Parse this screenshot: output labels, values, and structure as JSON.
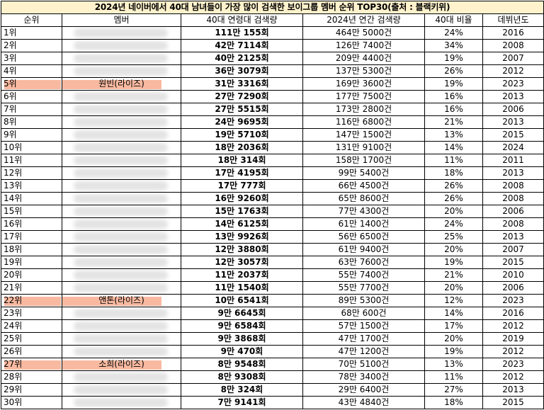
{
  "title": "2024년 네이버에서 40대 남녀들이 가장 많이 검색한 보이그룹 멤버 순위 TOP30(출처 : 블랙키위)",
  "headers": {
    "rank": "순위",
    "member": "멤버",
    "search40": "40대 연령대 검색량",
    "annual": "2024년 연간 검색량",
    "ratio": "40대 비율",
    "debut": "데뷔년도"
  },
  "highlight_color": "#f8b9a0",
  "title_background": "#fff2cc",
  "rows": [
    {
      "rank": "1위",
      "member": "",
      "search40": "111만 155회",
      "annual": "464만 5000건",
      "ratio": "24%",
      "debut": "2016",
      "highlight": false
    },
    {
      "rank": "2위",
      "member": "",
      "search40": "42만 7114회",
      "annual": "126만 7400건",
      "ratio": "34%",
      "debut": "2008",
      "highlight": false
    },
    {
      "rank": "3위",
      "member": "",
      "search40": "40만 2125회",
      "annual": "209만 4400건",
      "ratio": "19%",
      "debut": "2007",
      "highlight": false
    },
    {
      "rank": "4위",
      "member": "",
      "search40": "36만 3079회",
      "annual": "137만 5300건",
      "ratio": "26%",
      "debut": "2012",
      "highlight": false
    },
    {
      "rank": "5위",
      "member": "원빈(라이즈)",
      "search40": "31만 3316회",
      "annual": "169만 3600건",
      "ratio": "19%",
      "debut": "2023",
      "highlight": true
    },
    {
      "rank": "6위",
      "member": "",
      "search40": "27만 7290회",
      "annual": "177만 7500건",
      "ratio": "16%",
      "debut": "2013",
      "highlight": false
    },
    {
      "rank": "7위",
      "member": "",
      "search40": "27만 5515회",
      "annual": "173만 2800건",
      "ratio": "16%",
      "debut": "2006",
      "highlight": false
    },
    {
      "rank": "8위",
      "member": "",
      "search40": "24만 9695회",
      "annual": "116만 6800건",
      "ratio": "21%",
      "debut": "2013",
      "highlight": false
    },
    {
      "rank": "9위",
      "member": "",
      "search40": "19만 5710회",
      "annual": "147만 1500건",
      "ratio": "13%",
      "debut": "2015",
      "highlight": false
    },
    {
      "rank": "10위",
      "member": "",
      "search40": "18만 2036회",
      "annual": "131만 9100건",
      "ratio": "14%",
      "debut": "2024",
      "highlight": false
    },
    {
      "rank": "11위",
      "member": "",
      "search40": "18만 314회",
      "annual": "158만 1700건",
      "ratio": "11%",
      "debut": "2011",
      "highlight": false
    },
    {
      "rank": "12위",
      "member": "",
      "search40": "17만 4195회",
      "annual": "99만 5400건",
      "ratio": "18%",
      "debut": "2013",
      "highlight": false
    },
    {
      "rank": "13위",
      "member": "",
      "search40": "17만 777회",
      "annual": "66만 4500건",
      "ratio": "26%",
      "debut": "2008",
      "highlight": false
    },
    {
      "rank": "14위",
      "member": "",
      "search40": "16만 9260회",
      "annual": "65만 8600건",
      "ratio": "26%",
      "debut": "2008",
      "highlight": false
    },
    {
      "rank": "15위",
      "member": "",
      "search40": "15만 1763회",
      "annual": "77만 4300건",
      "ratio": "20%",
      "debut": "2006",
      "highlight": false
    },
    {
      "rank": "16위",
      "member": "",
      "search40": "14만 6125회",
      "annual": "61만 1400건",
      "ratio": "24%",
      "debut": "2008",
      "highlight": false
    },
    {
      "rank": "17위",
      "member": "",
      "search40": "13만 9926회",
      "annual": "56만 6500건",
      "ratio": "25%",
      "debut": "2013",
      "highlight": false
    },
    {
      "rank": "18위",
      "member": "",
      "search40": "12만 3880회",
      "annual": "61만 9400건",
      "ratio": "20%",
      "debut": "2007",
      "highlight": false
    },
    {
      "rank": "19위",
      "member": "",
      "search40": "12만 3057회",
      "annual": "63만 7600건",
      "ratio": "19%",
      "debut": "2015",
      "highlight": false
    },
    {
      "rank": "20위",
      "member": "",
      "search40": "11만 2037회",
      "annual": "55만 7400건",
      "ratio": "21%",
      "debut": "2010",
      "highlight": false
    },
    {
      "rank": "21위",
      "member": "",
      "search40": "11만 1540회",
      "annual": "55만 7700건",
      "ratio": "20%",
      "debut": "2006",
      "highlight": false
    },
    {
      "rank": "22위",
      "member": "앤톤(라이즈)",
      "search40": "10만 6541회",
      "annual": "89만 5300건",
      "ratio": "12%",
      "debut": "2023",
      "highlight": true
    },
    {
      "rank": "23위",
      "member": "",
      "search40": "9만 6645회",
      "annual": "68만 600건",
      "ratio": "14%",
      "debut": "2016",
      "highlight": false
    },
    {
      "rank": "24위",
      "member": "",
      "search40": "9만 6584회",
      "annual": "57만 1500건",
      "ratio": "17%",
      "debut": "2012",
      "highlight": false
    },
    {
      "rank": "25위",
      "member": "",
      "search40": "9만 3868회",
      "annual": "47만 1700건",
      "ratio": "20%",
      "debut": "2019",
      "highlight": false
    },
    {
      "rank": "26위",
      "member": "",
      "search40": "9만 470회",
      "annual": "47만 1200건",
      "ratio": "19%",
      "debut": "2012",
      "highlight": false
    },
    {
      "rank": "27위",
      "member": "소희(라이즈)",
      "search40": "8만 9548회",
      "annual": "70만 5100건",
      "ratio": "13%",
      "debut": "2023",
      "highlight": true
    },
    {
      "rank": "28위",
      "member": "",
      "search40": "8만 9308회",
      "annual": "78만 3400건",
      "ratio": "11%",
      "debut": "2012",
      "highlight": false
    },
    {
      "rank": "29위",
      "member": "",
      "search40": "8만 324회",
      "annual": "29만 6400건",
      "ratio": "27%",
      "debut": "2013",
      "highlight": false
    },
    {
      "rank": "30위",
      "member": "",
      "search40": "7만 9141회",
      "annual": "43만 4840건",
      "ratio": "18%",
      "debut": "2015",
      "highlight": false
    }
  ]
}
